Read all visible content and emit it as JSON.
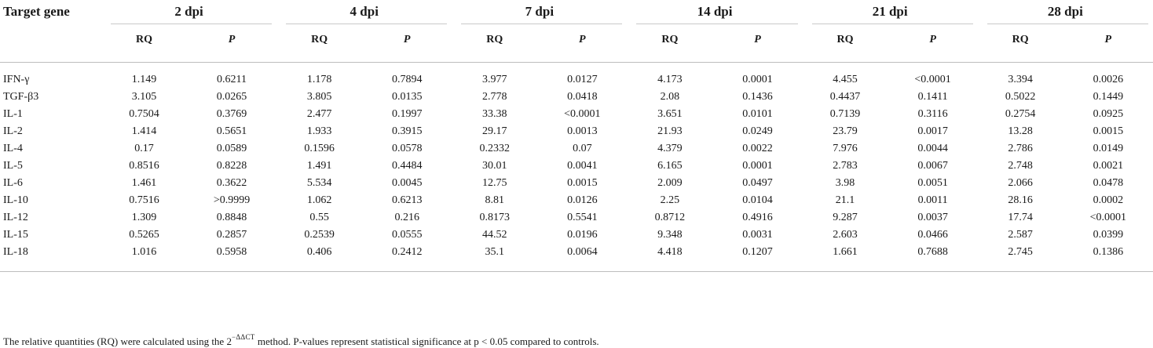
{
  "table": {
    "gene_header": "Target gene",
    "groups": [
      "2 dpi",
      "4 dpi",
      "7 dpi",
      "14 dpi",
      "21 dpi",
      "28 dpi"
    ],
    "rq_label": "RQ",
    "p_label": "P",
    "rows": [
      {
        "gene": "IFN-γ",
        "values": [
          "1.149",
          "0.6211",
          "1.178",
          "0.7894",
          "3.977",
          "0.0127",
          "4.173",
          "0.0001",
          "4.455",
          "<0.0001",
          "3.394",
          "0.0026"
        ]
      },
      {
        "gene": "TGF-β3",
        "values": [
          "3.105",
          "0.0265",
          "3.805",
          "0.0135",
          "2.778",
          "0.0418",
          "2.08",
          "0.1436",
          "0.4437",
          "0.1411",
          "0.5022",
          "0.1449"
        ]
      },
      {
        "gene": "IL-1",
        "values": [
          "0.7504",
          "0.3769",
          "2.477",
          "0.1997",
          "33.38",
          "<0.0001",
          "3.651",
          "0.0101",
          "0.7139",
          "0.3116",
          "0.2754",
          "0.0925"
        ]
      },
      {
        "gene": "IL-2",
        "values": [
          "1.414",
          "0.5651",
          "1.933",
          "0.3915",
          "29.17",
          "0.0013",
          "21.93",
          "0.0249",
          "23.79",
          "0.0017",
          "13.28",
          "0.0015"
        ]
      },
      {
        "gene": "IL-4",
        "values": [
          "0.17",
          "0.0589",
          "0.1596",
          "0.0578",
          "0.2332",
          "0.07",
          "4.379",
          "0.0022",
          "7.976",
          "0.0044",
          "2.786",
          "0.0149"
        ]
      },
      {
        "gene": "IL-5",
        "values": [
          "0.8516",
          "0.8228",
          "1.491",
          "0.4484",
          "30.01",
          "0.0041",
          "6.165",
          "0.0001",
          "2.783",
          "0.0067",
          "2.748",
          "0.0021"
        ]
      },
      {
        "gene": "IL-6",
        "values": [
          "1.461",
          "0.3622",
          "5.534",
          "0.0045",
          "12.75",
          "0.0015",
          "2.009",
          "0.0497",
          "3.98",
          "0.0051",
          "2.066",
          "0.0478"
        ]
      },
      {
        "gene": "IL-10",
        "values": [
          "0.7516",
          ">0.9999",
          "1.062",
          "0.6213",
          "8.81",
          "0.0126",
          "2.25",
          "0.0104",
          "21.1",
          "0.0011",
          "28.16",
          "0.0002"
        ]
      },
      {
        "gene": "IL-12",
        "values": [
          "1.309",
          "0.8848",
          "0.55",
          "0.216",
          "0.8173",
          "0.5541",
          "0.8712",
          "0.4916",
          "9.287",
          "0.0037",
          "17.74",
          "<0.0001"
        ]
      },
      {
        "gene": "IL-15",
        "values": [
          "0.5265",
          "0.2857",
          "0.2539",
          "0.0555",
          "44.52",
          "0.0196",
          "9.348",
          "0.0031",
          "2.603",
          "0.0466",
          "2.587",
          "0.0399"
        ]
      },
      {
        "gene": "IL-18",
        "values": [
          "1.016",
          "0.5958",
          "0.406",
          "0.2412",
          "35.1",
          "0.0064",
          "4.418",
          "0.1207",
          "1.661",
          "0.7688",
          "2.745",
          "0.1386"
        ]
      }
    ]
  },
  "footnote": {
    "before": "The relative quantities (RQ) were calculated using the 2",
    "superscript": "−ΔΔCT",
    "after": " method. P-values represent statistical significance at p < 0.05 compared to controls."
  }
}
